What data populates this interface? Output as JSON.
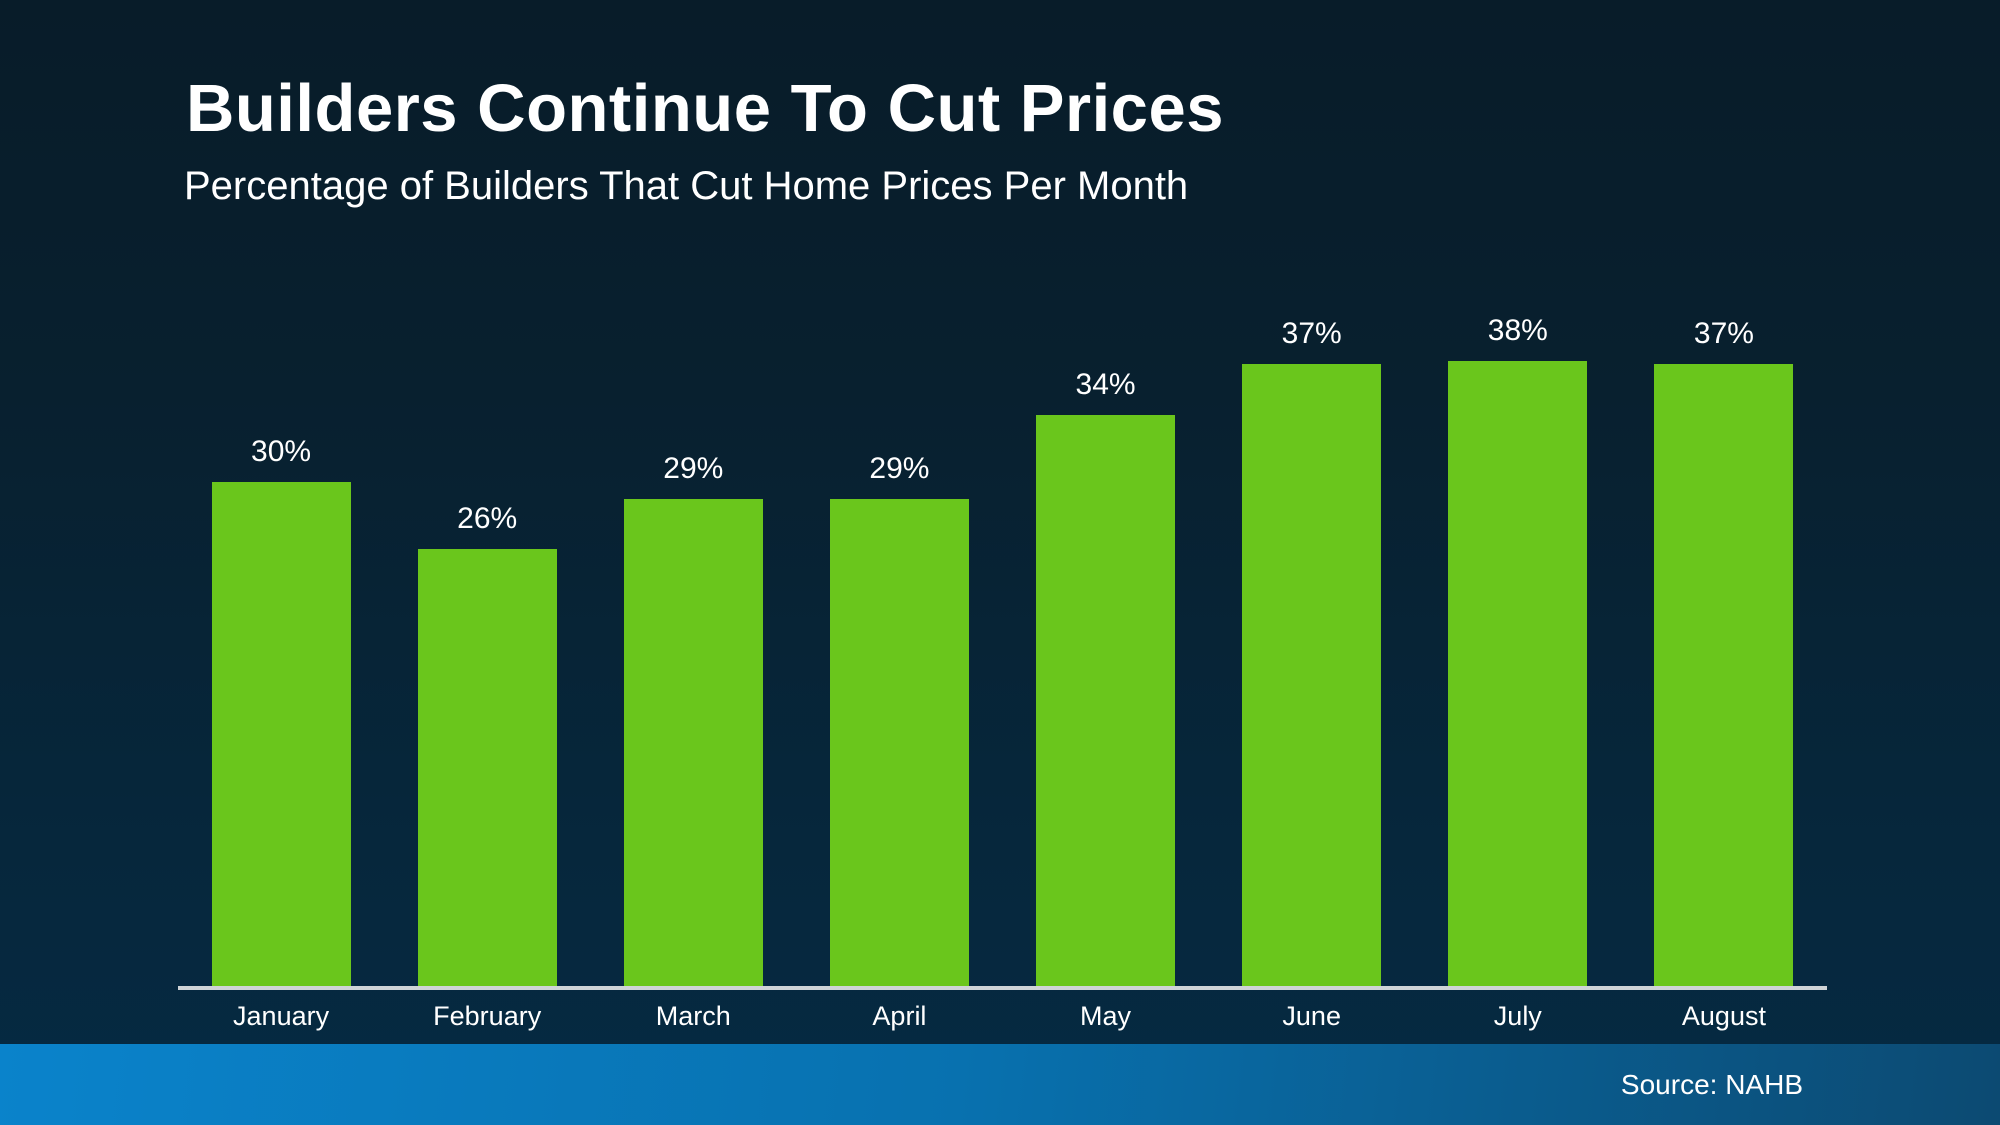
{
  "slide": {
    "title": "Builders Continue To Cut Prices",
    "subtitle": "Percentage of Builders That Cut Home Prices Per Month",
    "source": "Source: NAHB"
  },
  "colors": {
    "bar": "#6ac61c",
    "background_top": "#081c29",
    "background_bottom": "#052a43",
    "axis_line": "#cfd4d7",
    "footer_left": "#0a83cb",
    "footer_right": "#0c4a72",
    "text": "#ffffff"
  },
  "chart_data": {
    "type": "bar",
    "title": "Builders Continue To Cut Prices",
    "subtitle": "Percentage of Builders That Cut Home Prices Per Month",
    "categories": [
      "January",
      "February",
      "March",
      "April",
      "May",
      "June",
      "July",
      "August"
    ],
    "values": [
      30,
      26,
      29,
      29,
      34,
      37,
      38,
      37
    ],
    "value_labels": [
      "30%",
      "26%",
      "29%",
      "29%",
      "34%",
      "37%",
      "38%",
      "37%"
    ],
    "xlabel": "",
    "ylabel": "",
    "ylim": [
      0,
      40
    ],
    "grid": false,
    "legend": false,
    "bar_color": "#6ac61c",
    "annotation": "Source: NAHB"
  }
}
